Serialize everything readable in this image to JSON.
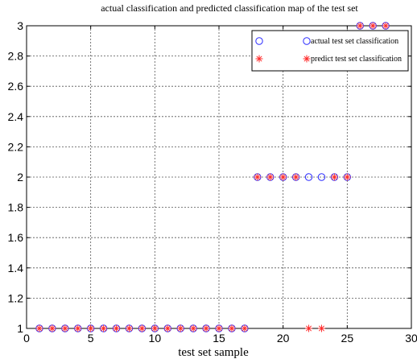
{
  "chart_data": {
    "type": "scatter",
    "title": "actual classification and predicted classification map of the test set",
    "xlabel": "test set sample",
    "ylabel": "",
    "xlim": [
      0,
      30
    ],
    "ylim": [
      1,
      3
    ],
    "xticks": [
      "0",
      "5",
      "10",
      "15",
      "20",
      "25",
      "30"
    ],
    "yticks": [
      "1",
      "1.2",
      "1.4",
      "1.6",
      "1.8",
      "2",
      "2.2",
      "2.4",
      "2.6",
      "2.8",
      "3"
    ],
    "grid": true,
    "legend_position": "top-right",
    "series": [
      {
        "name": "actual test set classification",
        "marker": "circle",
        "color": "#2b2bff",
        "x": [
          1,
          2,
          3,
          4,
          5,
          6,
          7,
          8,
          9,
          10,
          11,
          12,
          13,
          14,
          15,
          16,
          17,
          18,
          19,
          20,
          21,
          22,
          23,
          24,
          25,
          26,
          27,
          28
        ],
        "y": [
          1,
          1,
          1,
          1,
          1,
          1,
          1,
          1,
          1,
          1,
          1,
          1,
          1,
          1,
          1,
          1,
          1,
          2,
          2,
          2,
          2,
          2,
          2,
          2,
          2,
          3,
          3,
          3
        ]
      },
      {
        "name": "predict test set classification",
        "marker": "star",
        "color": "#ff2b2b",
        "x": [
          1,
          2,
          3,
          4,
          5,
          6,
          7,
          8,
          9,
          10,
          11,
          12,
          13,
          14,
          15,
          16,
          17,
          18,
          19,
          20,
          21,
          22,
          23,
          24,
          25,
          26,
          27,
          28
        ],
        "y": [
          1,
          1,
          1,
          1,
          1,
          1,
          1,
          1,
          1,
          1,
          1,
          1,
          1,
          1,
          1,
          1,
          1,
          2,
          2,
          2,
          2,
          1,
          1,
          2,
          2,
          3,
          3,
          3
        ]
      }
    ]
  }
}
